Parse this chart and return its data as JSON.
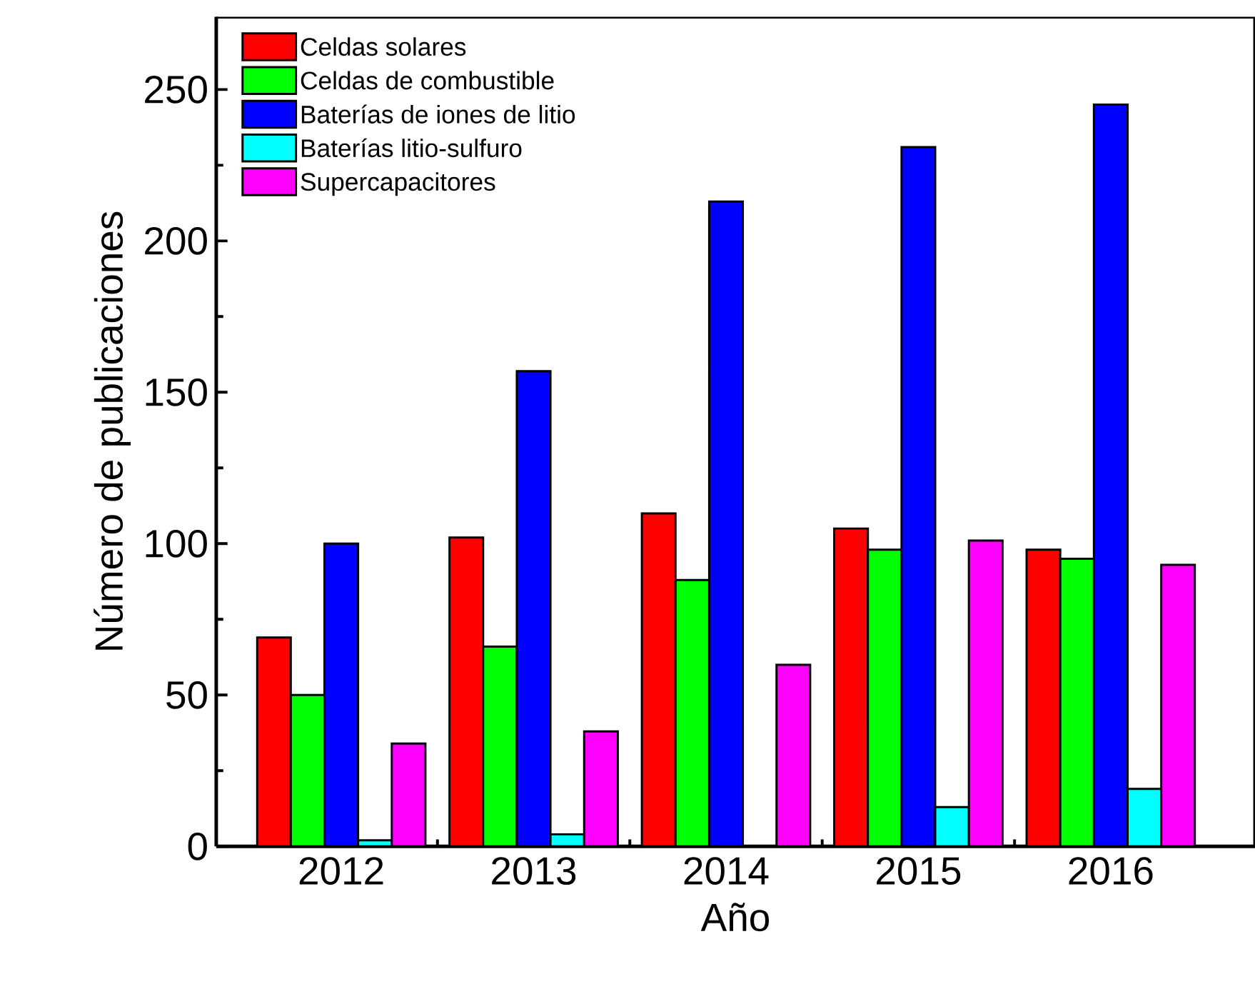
{
  "chart_data": {
    "type": "bar",
    "xlabel": "Año",
    "ylabel": "Número de publicaciones",
    "categories": [
      "2012",
      "2013",
      "2014",
      "2015",
      "2016"
    ],
    "series": [
      {
        "name": "Celdas solares",
        "color": "#ff0000",
        "values": [
          69,
          102,
          110,
          105,
          98
        ]
      },
      {
        "name": "Celdas de combustible",
        "color": "#00ff00",
        "values": [
          50,
          66,
          88,
          98,
          95
        ]
      },
      {
        "name": "Baterías de iones de litio",
        "color": "#0000ff",
        "values": [
          100,
          157,
          213,
          231,
          245
        ]
      },
      {
        "name": "Baterías litio-sulfuro",
        "color": "#00ffff",
        "values": [
          2,
          4,
          null,
          13,
          19
        ]
      },
      {
        "name": "Supercapacitores",
        "color": "#ff00ff",
        "values": [
          34,
          38,
          60,
          101,
          93
        ]
      }
    ],
    "ylim": [
      0,
      274
    ],
    "yticks": [
      0,
      50,
      100,
      150,
      200,
      250
    ],
    "legend": "top left",
    "grid": false
  }
}
